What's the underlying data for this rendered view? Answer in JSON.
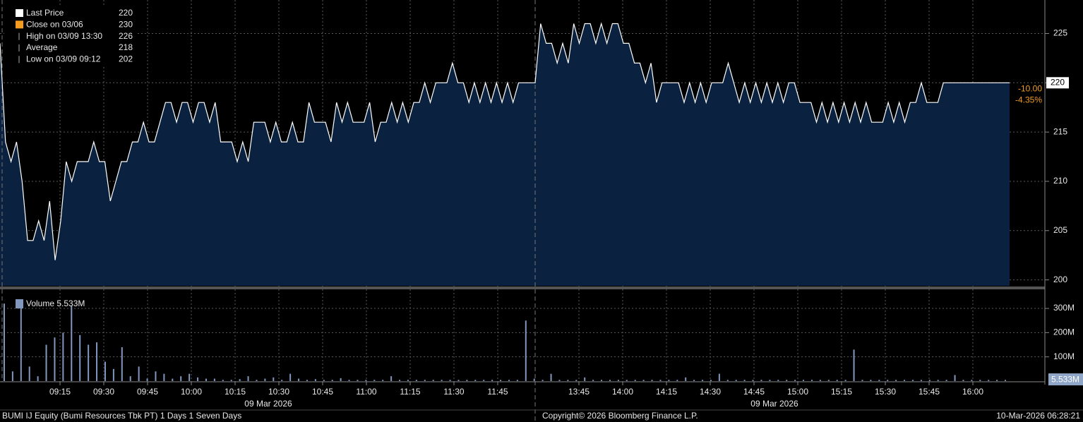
{
  "chart_data": [
    {
      "type": "line",
      "series": [
        {
          "name": "Last Price",
          "color": "#ffffff",
          "values": [
            224,
            214,
            212,
            214,
            210,
            204,
            204,
            206,
            204,
            208,
            202,
            206,
            212,
            210,
            212,
            212,
            212,
            214,
            212,
            212,
            208,
            210,
            212,
            212,
            214,
            214,
            216,
            214,
            214,
            216,
            218,
            218,
            216,
            218,
            218,
            216,
            218,
            218,
            216,
            218,
            214,
            214,
            214,
            212,
            214,
            212,
            216,
            216,
            216,
            214,
            216,
            214,
            214,
            216,
            214,
            214,
            218,
            216,
            216,
            216,
            214,
            218,
            216,
            218,
            216,
            216,
            216,
            218,
            214,
            216,
            216,
            218,
            216,
            218,
            216,
            218,
            218,
            220,
            218,
            220,
            220,
            220,
            222,
            220,
            220,
            218,
            220,
            218,
            220,
            218,
            220,
            218,
            220,
            218,
            220,
            220,
            220,
            220,
            226,
            224,
            224,
            222,
            224,
            222,
            226,
            224,
            226,
            226,
            224,
            226,
            224,
            226,
            226,
            224,
            224,
            222,
            222,
            220,
            222,
            218,
            220,
            220,
            220,
            220,
            218,
            220,
            218,
            220,
            218,
            220,
            220,
            220,
            222,
            220,
            218,
            220,
            218,
            220,
            218,
            220,
            218,
            220,
            218,
            220,
            220,
            218,
            218,
            218,
            216,
            218,
            216,
            218,
            216,
            218,
            216,
            218,
            216,
            218,
            216,
            216,
            216,
            218,
            216,
            218,
            216,
            218,
            218,
            220,
            218,
            218,
            218,
            220,
            220,
            220,
            220,
            220,
            220,
            220,
            220,
            220,
            220,
            220,
            220,
            220
          ]
        }
      ],
      "fill_color": "#0a2240",
      "legend": [
        {
          "name": "Last Price",
          "value": 220,
          "color": "#ffffff"
        },
        {
          "name": "Close on 03/06",
          "value": 230,
          "color": "#f39c1f"
        },
        {
          "name": "High on 03/09 13:30",
          "value": 226
        },
        {
          "name": "Average",
          "value": 218
        },
        {
          "name": "Low on 03/09 09:12",
          "value": 202
        }
      ],
      "last_value": 220,
      "change": {
        "value": -10,
        "label": "-10.00"
      },
      "change_pct": {
        "value": -4.35,
        "label": "-4.35%"
      },
      "ylim": [
        199.4,
        228.4
      ],
      "yticks": [
        200,
        205,
        210,
        215,
        220,
        225
      ],
      "grid": true
    },
    {
      "type": "bar",
      "series": [
        {
          "name": "Volume",
          "color": "#8197bd",
          "values": [
            320,
            40,
            300,
            60,
            20,
            150,
            180,
            200,
            310,
            190,
            150,
            160,
            80,
            50,
            140,
            20,
            60,
            10,
            40,
            30,
            10,
            20,
            30,
            15,
            10,
            10,
            5,
            5,
            8,
            20,
            5,
            10,
            15,
            5,
            30,
            10,
            5,
            8,
            5,
            5,
            12,
            5,
            5,
            5,
            5,
            5,
            20,
            5,
            5,
            5,
            5,
            5,
            5,
            5,
            5,
            5,
            5,
            5,
            5,
            5,
            5,
            5,
            250,
            10,
            5,
            30,
            5,
            5,
            5,
            15,
            5,
            5,
            5,
            5,
            5,
            5,
            5,
            5,
            5,
            5,
            5,
            15,
            5,
            5,
            5,
            30,
            5,
            5,
            5,
            5,
            5,
            5,
            5,
            5,
            5,
            5,
            5,
            5,
            5,
            5,
            5,
            130,
            5,
            5,
            5,
            5,
            5,
            5,
            5,
            5,
            5,
            5,
            5,
            25,
            5,
            5,
            5,
            5,
            5,
            5
          ]
        }
      ],
      "last_value": {
        "value": 5.533,
        "label": "5.533M"
      },
      "ylim": [
        0,
        373
      ],
      "yticks": [
        {
          "value": 100,
          "label": "100M"
        },
        {
          "value": 200,
          "label": "200M"
        },
        {
          "value": 300,
          "label": "300M"
        }
      ],
      "grid": true
    }
  ],
  "x_axis": {
    "session1": [
      "09:15",
      "09:30",
      "09:45",
      "10:00",
      "10:15",
      "10:30",
      "10:45",
      "11:00",
      "11:15",
      "11:30",
      "11:45"
    ],
    "session2": [
      "13:45",
      "14:00",
      "14:15",
      "14:30",
      "14:45",
      "15:00",
      "15:15",
      "15:30",
      "15:45",
      "16:00"
    ],
    "dates": [
      "09 Mar 2026",
      "09 Mar 2026"
    ]
  },
  "footer": {
    "left": "BUMI IJ Equity (Bumi Resources Tbk PT) 1 Days 1 Seven Days",
    "center": "Copyright© 2026 Bloomberg Finance L.P.",
    "right": "10-Mar-2026 06:28:21"
  }
}
